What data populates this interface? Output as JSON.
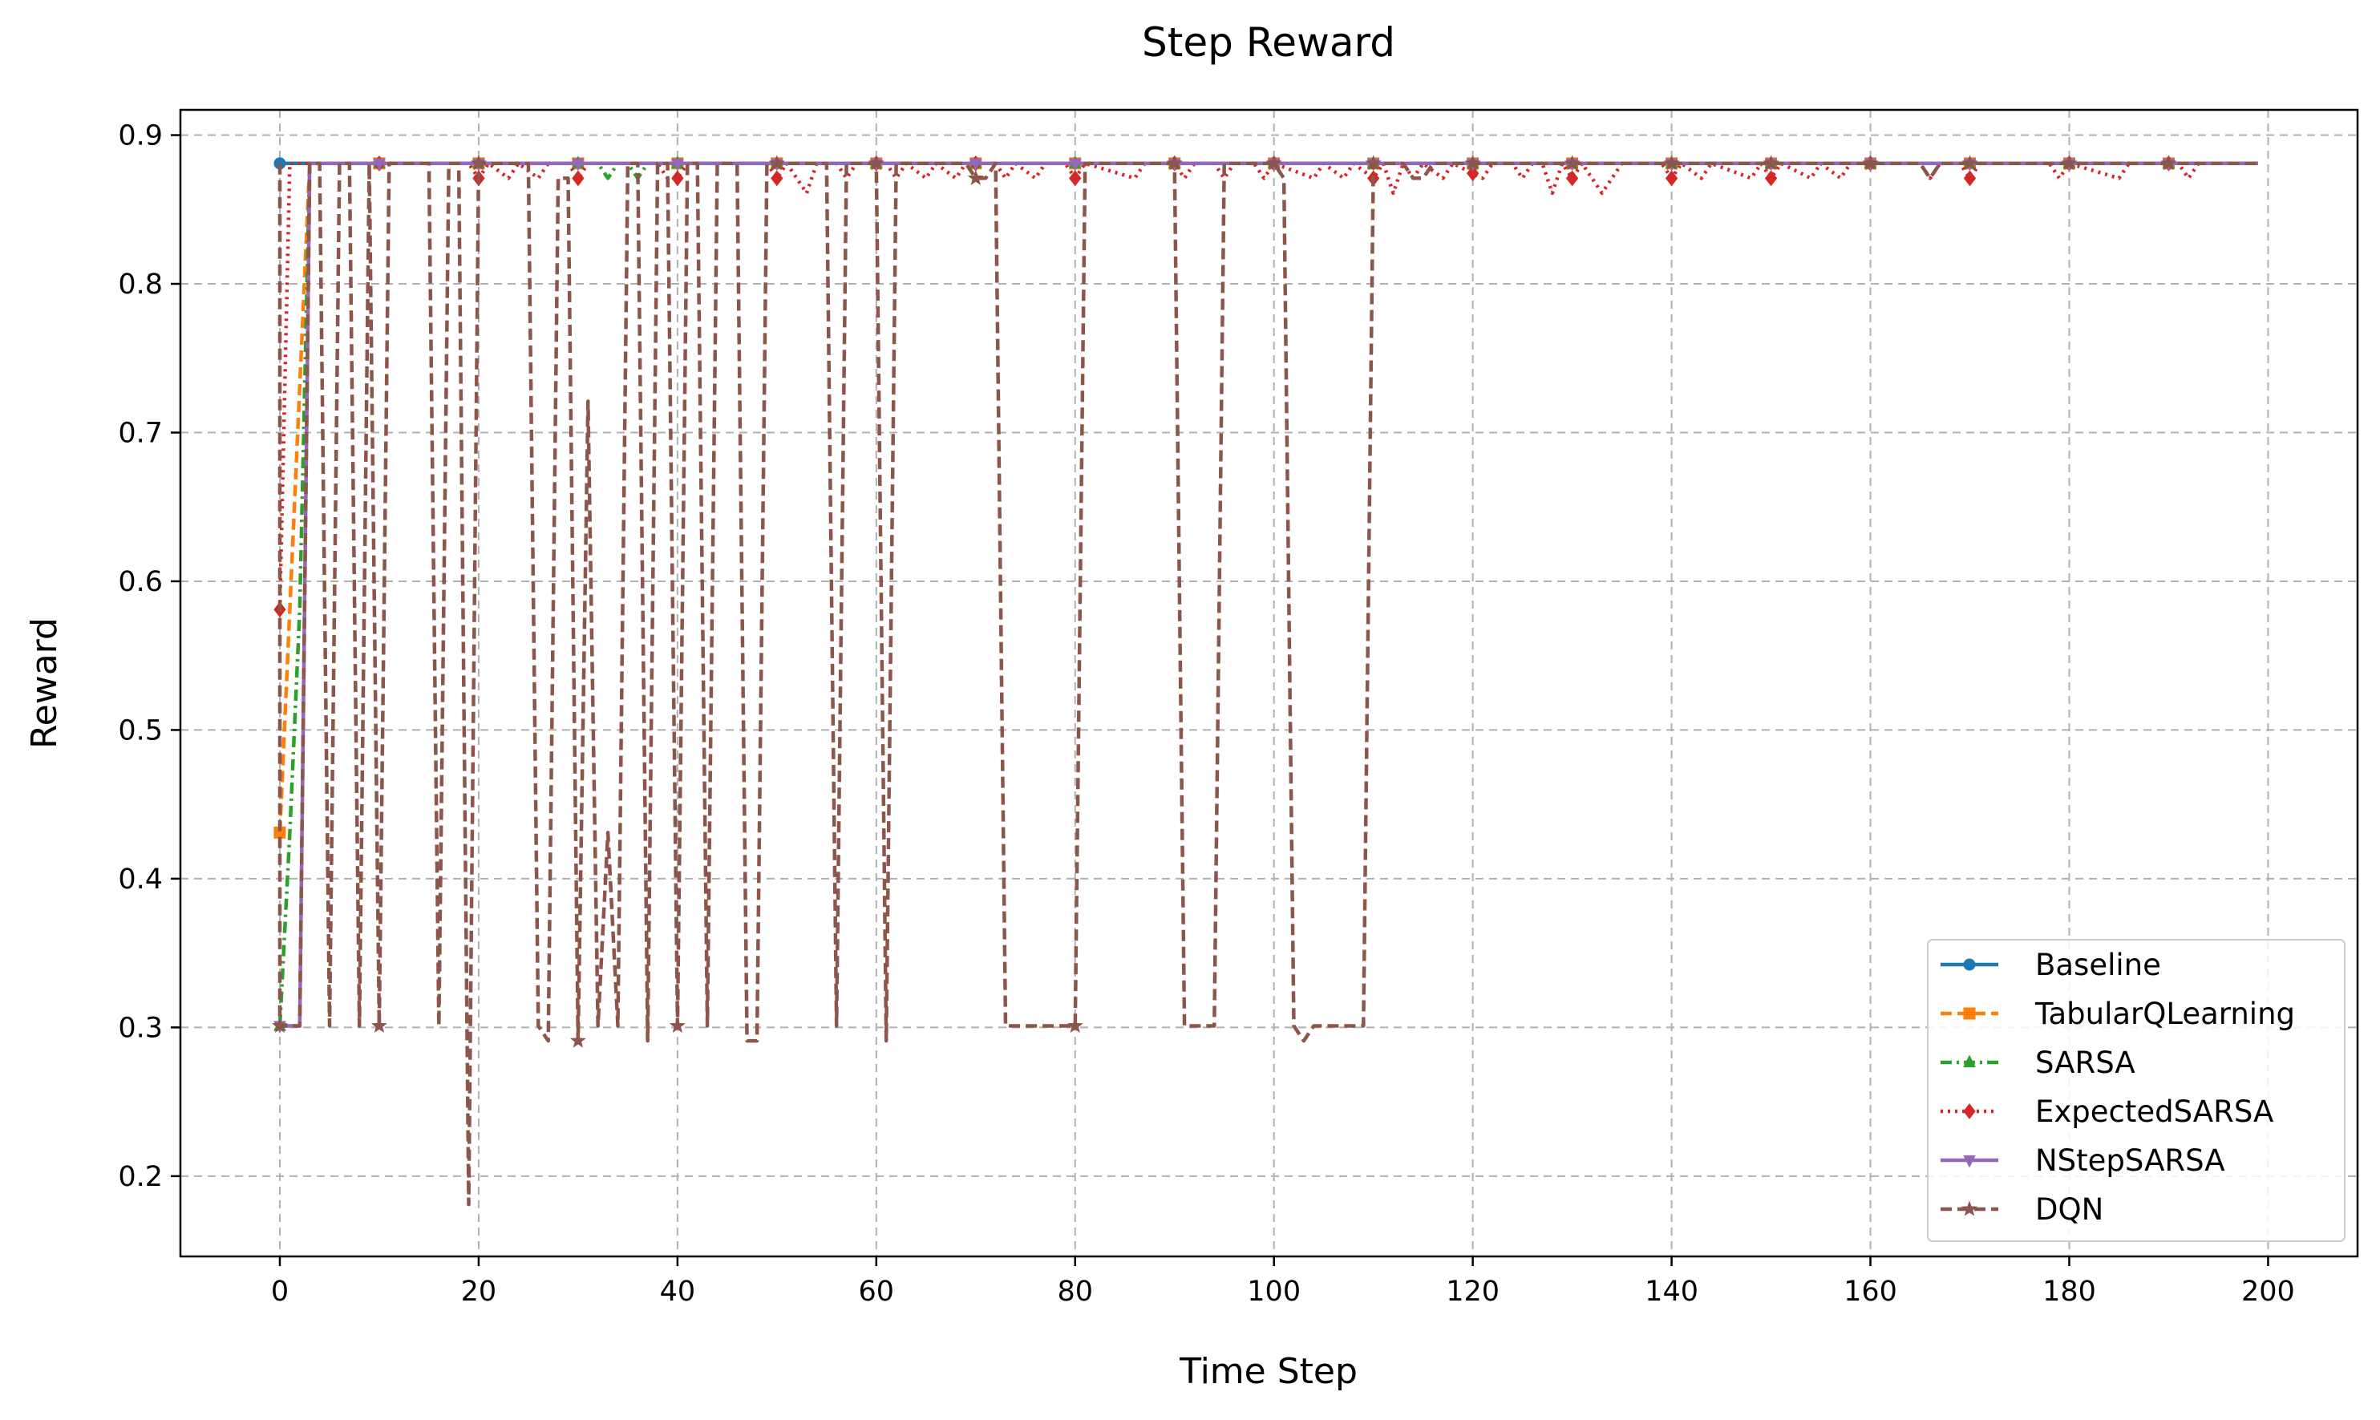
{
  "chart_data": {
    "type": "line",
    "title": "Step Reward",
    "xlabel": "Time Step",
    "ylabel": "Reward",
    "xlim": [
      -10,
      209
    ],
    "ylim": [
      0.146,
      0.917
    ],
    "xticks": [
      0,
      20,
      40,
      60,
      80,
      100,
      120,
      140,
      160,
      180,
      200
    ],
    "xtick_labels": [
      "0",
      "20",
      "40",
      "60",
      "80",
      "100",
      "120",
      "140",
      "160",
      "180",
      "200"
    ],
    "yticks": [
      0.2,
      0.3,
      0.4,
      0.5,
      0.6,
      0.7,
      0.8,
      0.9
    ],
    "ytick_labels": [
      "0.2",
      "0.3",
      "0.4",
      "0.5",
      "0.6",
      "0.7",
      "0.8",
      "0.9"
    ],
    "grid": true,
    "legend_position": "lower right",
    "series": [
      {
        "name": "Baseline",
        "color": "#1f77b4",
        "linestyle": "solid",
        "marker": "circle",
        "points": [
          [
            0,
            0.881
          ],
          [
            199,
            0.881
          ]
        ]
      },
      {
        "name": "TabularQLearning",
        "color": "#ff7f0e",
        "linestyle": "dashed",
        "marker": "square",
        "points": [
          [
            0,
            0.431
          ],
          [
            1,
            0.581
          ],
          [
            2,
            0.731
          ],
          [
            3,
            0.881
          ],
          [
            199,
            0.881
          ]
        ]
      },
      {
        "name": "SARSA",
        "color": "#2ca02c",
        "linestyle": "dashdot",
        "marker": "triangle-up",
        "points": [
          [
            0,
            0.301
          ],
          [
            1,
            0.431
          ],
          [
            2,
            0.581
          ],
          [
            3,
            0.881
          ],
          [
            32,
            0.881
          ],
          [
            33,
            0.871
          ],
          [
            34,
            0.881
          ],
          [
            35,
            0.881
          ],
          [
            36,
            0.871
          ],
          [
            37,
            0.881
          ],
          [
            199,
            0.881
          ]
        ]
      },
      {
        "name": "ExpectedSARSA",
        "color": "#d62728",
        "linestyle": "dotted",
        "marker": "diamond",
        "points": [
          [
            0,
            0.581
          ],
          [
            1,
            0.881
          ],
          [
            19,
            0.881
          ],
          [
            20,
            0.871
          ],
          [
            21,
            0.881
          ],
          [
            23,
            0.871
          ],
          [
            24,
            0.881
          ],
          [
            26,
            0.871
          ],
          [
            27,
            0.881
          ],
          [
            29,
            0.881
          ],
          [
            30,
            0.871
          ],
          [
            31,
            0.881
          ],
          [
            38,
            0.881
          ],
          [
            39,
            0.871
          ],
          [
            40,
            0.871
          ],
          [
            41,
            0.881
          ],
          [
            49,
            0.881
          ],
          [
            50,
            0.871
          ],
          [
            51,
            0.881
          ],
          [
            53,
            0.861
          ],
          [
            54,
            0.881
          ],
          [
            56,
            0.881
          ],
          [
            57,
            0.871
          ],
          [
            58,
            0.881
          ],
          [
            61,
            0.881
          ],
          [
            62,
            0.871
          ],
          [
            63,
            0.881
          ],
          [
            65,
            0.871
          ],
          [
            66,
            0.881
          ],
          [
            68,
            0.871
          ],
          [
            69,
            0.881
          ],
          [
            72,
            0.881
          ],
          [
            73,
            0.871
          ],
          [
            74,
            0.881
          ],
          [
            76,
            0.871
          ],
          [
            77,
            0.881
          ],
          [
            79,
            0.881
          ],
          [
            80,
            0.871
          ],
          [
            81,
            0.881
          ],
          [
            86,
            0.871
          ],
          [
            87,
            0.881
          ],
          [
            90,
            0.881
          ],
          [
            91,
            0.871
          ],
          [
            92,
            0.881
          ],
          [
            94,
            0.881
          ],
          [
            95,
            0.871
          ],
          [
            96,
            0.881
          ],
          [
            98,
            0.881
          ],
          [
            99,
            0.871
          ],
          [
            100,
            0.881
          ],
          [
            104,
            0.871
          ],
          [
            105,
            0.881
          ],
          [
            107,
            0.871
          ],
          [
            108,
            0.881
          ],
          [
            110,
            0.871
          ],
          [
            111,
            0.881
          ],
          [
            112,
            0.861
          ],
          [
            113,
            0.881
          ],
          [
            114,
            0.871
          ],
          [
            115,
            0.881
          ],
          [
            117,
            0.871
          ],
          [
            118,
            0.881
          ],
          [
            121,
            0.871
          ],
          [
            122,
            0.881
          ],
          [
            124,
            0.881
          ],
          [
            125,
            0.871
          ],
          [
            126,
            0.881
          ],
          [
            127,
            0.881
          ],
          [
            128,
            0.861
          ],
          [
            129,
            0.881
          ],
          [
            130,
            0.871
          ],
          [
            131,
            0.881
          ],
          [
            133,
            0.861
          ],
          [
            134,
            0.871
          ],
          [
            135,
            0.881
          ],
          [
            139,
            0.881
          ],
          [
            140,
            0.871
          ],
          [
            141,
            0.881
          ],
          [
            143,
            0.871
          ],
          [
            144,
            0.881
          ],
          [
            148,
            0.871
          ],
          [
            149,
            0.881
          ],
          [
            150,
            0.871
          ],
          [
            151,
            0.881
          ],
          [
            154,
            0.871
          ],
          [
            155,
            0.881
          ],
          [
            157,
            0.871
          ],
          [
            158,
            0.881
          ],
          [
            165,
            0.881
          ],
          [
            166,
            0.871
          ],
          [
            167,
            0.881
          ],
          [
            169,
            0.881
          ],
          [
            170,
            0.871
          ],
          [
            171,
            0.881
          ],
          [
            178,
            0.881
          ],
          [
            179,
            0.871
          ],
          [
            180,
            0.881
          ],
          [
            185,
            0.871
          ],
          [
            186,
            0.881
          ],
          [
            191,
            0.881
          ],
          [
            192,
            0.871
          ],
          [
            193,
            0.881
          ],
          [
            199,
            0.881
          ]
        ]
      },
      {
        "name": "NStepSARSA",
        "color": "#9467bd",
        "linestyle": "solid",
        "marker": "triangle-down",
        "points": [
          [
            0,
            0.301
          ],
          [
            1,
            0.301
          ],
          [
            2,
            0.301
          ],
          [
            3,
            0.881
          ],
          [
            199,
            0.881
          ]
        ]
      },
      {
        "name": "DQN",
        "color": "#8c564b",
        "linestyle": "dashed",
        "marker": "star",
        "points": [
          [
            0,
            0.881
          ],
          [
            0,
            0.301
          ],
          [
            1,
            0.301
          ],
          [
            2,
            0.301
          ],
          [
            3,
            0.881
          ],
          [
            4,
            0.881
          ],
          [
            5,
            0.301
          ],
          [
            6,
            0.881
          ],
          [
            7,
            0.881
          ],
          [
            8,
            0.301
          ],
          [
            9,
            0.881
          ],
          [
            10,
            0.301
          ],
          [
            11,
            0.881
          ],
          [
            15,
            0.881
          ],
          [
            16,
            0.301
          ],
          [
            17,
            0.881
          ],
          [
            18,
            0.881
          ],
          [
            19,
            0.181
          ],
          [
            20,
            0.881
          ],
          [
            25,
            0.881
          ],
          [
            26,
            0.301
          ],
          [
            27,
            0.291
          ],
          [
            28,
            0.871
          ],
          [
            29,
            0.871
          ],
          [
            30,
            0.291
          ],
          [
            31,
            0.721
          ],
          [
            32,
            0.301
          ],
          [
            33,
            0.431
          ],
          [
            34,
            0.301
          ],
          [
            35,
            0.881
          ],
          [
            36,
            0.881
          ],
          [
            37,
            0.291
          ],
          [
            38,
            0.881
          ],
          [
            39,
            0.881
          ],
          [
            40,
            0.301
          ],
          [
            41,
            0.881
          ],
          [
            42,
            0.881
          ],
          [
            43,
            0.301
          ],
          [
            44,
            0.881
          ],
          [
            46,
            0.881
          ],
          [
            47,
            0.291
          ],
          [
            48,
            0.291
          ],
          [
            49,
            0.881
          ],
          [
            55,
            0.881
          ],
          [
            56,
            0.301
          ],
          [
            57,
            0.881
          ],
          [
            60,
            0.881
          ],
          [
            61,
            0.291
          ],
          [
            62,
            0.881
          ],
          [
            69,
            0.881
          ],
          [
            70,
            0.871
          ],
          [
            71,
            0.871
          ],
          [
            72,
            0.881
          ],
          [
            73,
            0.301
          ],
          [
            80,
            0.301
          ],
          [
            81,
            0.881
          ],
          [
            90,
            0.881
          ],
          [
            91,
            0.301
          ],
          [
            94,
            0.301
          ],
          [
            95,
            0.881
          ],
          [
            100,
            0.881
          ],
          [
            101,
            0.871
          ],
          [
            102,
            0.301
          ],
          [
            103,
            0.291
          ],
          [
            104,
            0.301
          ],
          [
            109,
            0.301
          ],
          [
            110,
            0.881
          ],
          [
            113,
            0.881
          ],
          [
            114,
            0.871
          ],
          [
            115,
            0.871
          ],
          [
            116,
            0.881
          ],
          [
            165,
            0.881
          ],
          [
            166,
            0.871
          ],
          [
            167,
            0.881
          ],
          [
            199,
            0.881
          ]
        ]
      }
    ]
  }
}
